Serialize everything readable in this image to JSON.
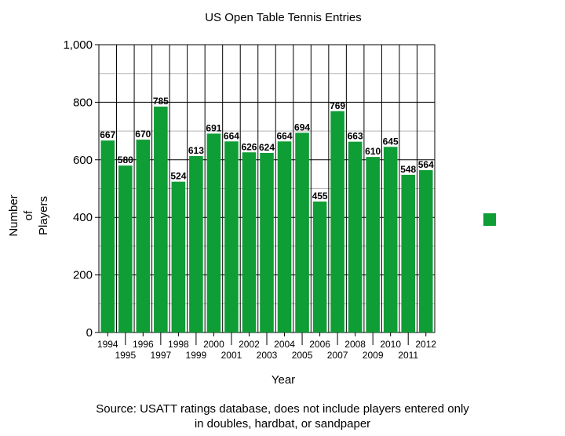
{
  "chart_data": {
    "type": "bar",
    "title": "US Open Table Tennis Entries",
    "xlabel": "Year",
    "ylabel_lines": [
      "Number",
      "of",
      "Players"
    ],
    "ylim": [
      0,
      1000
    ],
    "y_ticks": [
      "0",
      "200",
      "400",
      "600",
      "800",
      "1,000"
    ],
    "y_tick_values": [
      0,
      200,
      400,
      600,
      800,
      1000
    ],
    "categories": [
      "1994",
      "1995",
      "1996",
      "1997",
      "1998",
      "1999",
      "2000",
      "2001",
      "2002",
      "2003",
      "2004",
      "2005",
      "2006",
      "2007",
      "2008",
      "2009",
      "2010",
      "2011",
      "2012"
    ],
    "values": [
      667,
      580,
      670,
      785,
      524,
      613,
      691,
      664,
      626,
      624,
      664,
      694,
      455,
      769,
      663,
      610,
      645,
      548,
      564
    ],
    "bar_color": "#0f9d35",
    "grid": true,
    "legend": "right"
  },
  "source": {
    "line1": "Source: USATT ratings database, does not include players entered only",
    "line2": "in doubles, hardbat, or sandpaper"
  }
}
